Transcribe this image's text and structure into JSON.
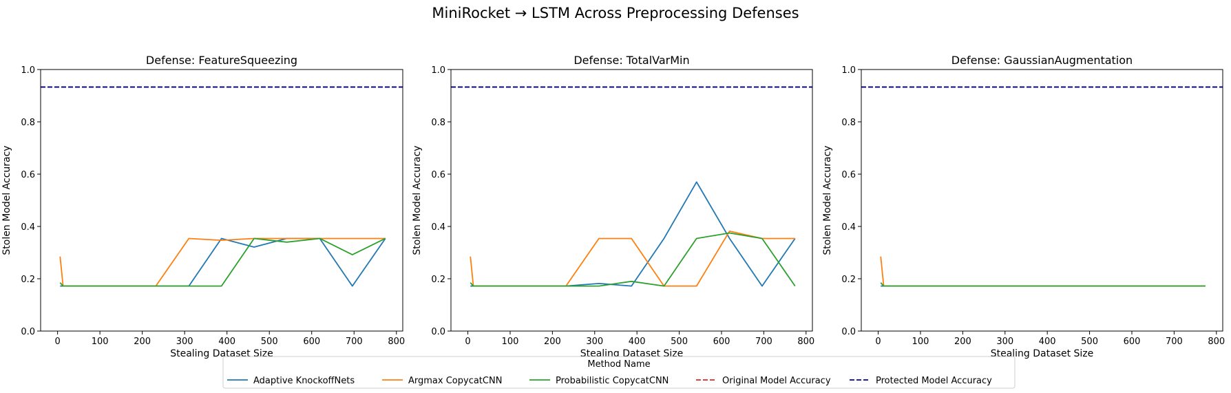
{
  "figure": {
    "title": "MiniRocket → LSTM Across Preprocessing Defenses"
  },
  "legend": {
    "title": "Method Name",
    "position": "bottom-center",
    "entries": [
      {
        "label": "Adaptive KnockoffNets",
        "color": "#1f77b4",
        "dash": "solid"
      },
      {
        "label": "Argmax CopycatCNN",
        "color": "#ff7f0e",
        "dash": "solid"
      },
      {
        "label": "Probabilistic CopycatCNN",
        "color": "#2ca02c",
        "dash": "solid"
      },
      {
        "label": "Original Model Accuracy",
        "color": "#d62728",
        "dash": "dashed"
      },
      {
        "label": "Protected Model Accuracy",
        "color": "#00008b",
        "dash": "dashed"
      }
    ]
  },
  "chart_data": [
    {
      "type": "line",
      "title": "Defense: FeatureSqueezing",
      "xlabel": "Stealing Dataset Size",
      "ylabel": "Stolen Model Accuracy",
      "xlim": [
        -40,
        815
      ],
      "ylim": [
        0,
        1.0
      ],
      "xticks": [
        0,
        100,
        200,
        300,
        400,
        500,
        600,
        700,
        800
      ],
      "yticks": [
        0.0,
        0.2,
        0.4,
        0.6,
        0.8,
        1.0
      ],
      "grid": false,
      "series": [
        {
          "name": "Adaptive KnockoffNets",
          "color": "#1f77b4",
          "x": [
            6,
            13,
            20,
            77,
            155,
            232,
            310,
            387,
            464,
            541,
            619,
            696,
            774
          ],
          "y": [
            0.172,
            0.172,
            0.172,
            0.172,
            0.172,
            0.172,
            0.172,
            0.354,
            0.321,
            0.354,
            0.354,
            0.172,
            0.354
          ]
        },
        {
          "name": "Argmax CopycatCNN",
          "color": "#ff7f0e",
          "x": [
            6,
            13,
            20,
            77,
            155,
            232,
            310,
            387,
            464,
            541,
            619,
            696,
            774
          ],
          "y": [
            0.285,
            0.172,
            0.172,
            0.172,
            0.172,
            0.172,
            0.354,
            0.347,
            0.354,
            0.354,
            0.354,
            0.354,
            0.354
          ]
        },
        {
          "name": "Probabilistic CopycatCNN",
          "color": "#2ca02c",
          "x": [
            6,
            13,
            20,
            77,
            155,
            232,
            310,
            387,
            464,
            541,
            619,
            696,
            774
          ],
          "y": [
            0.185,
            0.172,
            0.172,
            0.172,
            0.172,
            0.172,
            0.172,
            0.172,
            0.354,
            0.34,
            0.354,
            0.292,
            0.354
          ]
        }
      ],
      "hlines": [
        {
          "name": "Original Model Accuracy",
          "y": 0.933,
          "color": "#d62728"
        },
        {
          "name": "Protected Model Accuracy",
          "y": 0.933,
          "color": "#00008b"
        }
      ]
    },
    {
      "type": "line",
      "title": "Defense: TotalVarMin",
      "xlabel": "Stealing Dataset Size",
      "ylabel": "Stolen Model Accuracy",
      "xlim": [
        -40,
        815
      ],
      "ylim": [
        0,
        1.0
      ],
      "xticks": [
        0,
        100,
        200,
        300,
        400,
        500,
        600,
        700,
        800
      ],
      "yticks": [
        0.0,
        0.2,
        0.4,
        0.6,
        0.8,
        1.0
      ],
      "grid": false,
      "series": [
        {
          "name": "Adaptive KnockoffNets",
          "color": "#1f77b4",
          "x": [
            6,
            13,
            20,
            77,
            155,
            232,
            310,
            387,
            464,
            541,
            619,
            696,
            774
          ],
          "y": [
            0.172,
            0.172,
            0.172,
            0.172,
            0.172,
            0.172,
            0.182,
            0.172,
            0.354,
            0.57,
            0.354,
            0.172,
            0.354
          ]
        },
        {
          "name": "Argmax CopycatCNN",
          "color": "#ff7f0e",
          "x": [
            6,
            13,
            20,
            77,
            155,
            232,
            310,
            387,
            464,
            541,
            619,
            696,
            774
          ],
          "y": [
            0.285,
            0.172,
            0.172,
            0.172,
            0.172,
            0.172,
            0.354,
            0.354,
            0.172,
            0.172,
            0.382,
            0.354,
            0.354
          ]
        },
        {
          "name": "Probabilistic CopycatCNN",
          "color": "#2ca02c",
          "x": [
            6,
            13,
            20,
            77,
            155,
            232,
            310,
            387,
            464,
            541,
            619,
            696,
            774
          ],
          "y": [
            0.185,
            0.172,
            0.172,
            0.172,
            0.172,
            0.172,
            0.172,
            0.19,
            0.172,
            0.354,
            0.375,
            0.354,
            0.172
          ]
        }
      ],
      "hlines": [
        {
          "name": "Original Model Accuracy",
          "y": 0.933,
          "color": "#d62728"
        },
        {
          "name": "Protected Model Accuracy",
          "y": 0.933,
          "color": "#00008b"
        }
      ]
    },
    {
      "type": "line",
      "title": "Defense: GaussianAugmentation",
      "xlabel": "Stealing Dataset Size",
      "ylabel": "Stolen Model Accuracy",
      "xlim": [
        -40,
        815
      ],
      "ylim": [
        0,
        1.0
      ],
      "xticks": [
        0,
        100,
        200,
        300,
        400,
        500,
        600,
        700,
        800
      ],
      "yticks": [
        0.0,
        0.2,
        0.4,
        0.6,
        0.8,
        1.0
      ],
      "grid": false,
      "series": [
        {
          "name": "Adaptive KnockoffNets",
          "color": "#1f77b4",
          "x": [
            6,
            13,
            20,
            77,
            155,
            232,
            310,
            387,
            464,
            541,
            619,
            696,
            774
          ],
          "y": [
            0.172,
            0.172,
            0.172,
            0.172,
            0.172,
            0.172,
            0.172,
            0.172,
            0.172,
            0.172,
            0.172,
            0.172,
            0.172
          ]
        },
        {
          "name": "Argmax CopycatCNN",
          "color": "#ff7f0e",
          "x": [
            6,
            13,
            20,
            77,
            155,
            232,
            310,
            387,
            464,
            541,
            619,
            696,
            774
          ],
          "y": [
            0.285,
            0.172,
            0.172,
            0.172,
            0.172,
            0.172,
            0.172,
            0.172,
            0.172,
            0.172,
            0.172,
            0.172,
            0.172
          ]
        },
        {
          "name": "Probabilistic CopycatCNN",
          "color": "#2ca02c",
          "x": [
            6,
            13,
            20,
            77,
            155,
            232,
            310,
            387,
            464,
            541,
            619,
            696,
            774
          ],
          "y": [
            0.185,
            0.172,
            0.172,
            0.172,
            0.172,
            0.172,
            0.172,
            0.172,
            0.172,
            0.172,
            0.172,
            0.172,
            0.172
          ]
        }
      ],
      "hlines": [
        {
          "name": "Original Model Accuracy",
          "y": 0.933,
          "color": "#d62728"
        },
        {
          "name": "Protected Model Accuracy",
          "y": 0.933,
          "color": "#00008b"
        }
      ]
    }
  ]
}
